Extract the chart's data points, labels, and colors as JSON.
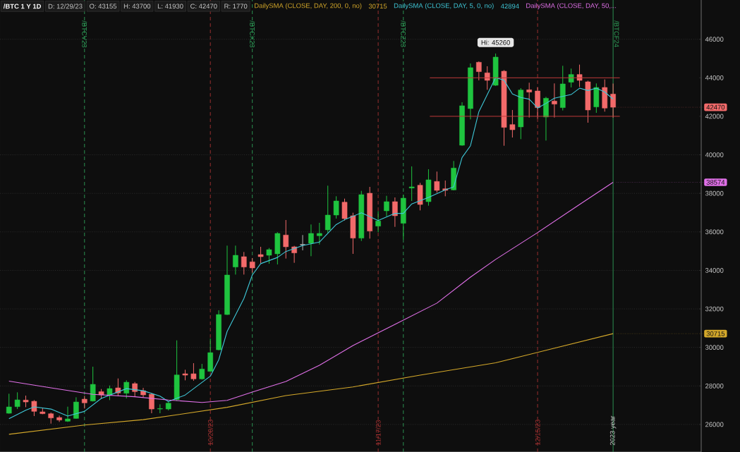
{
  "chart_data": {
    "type": "candlestick",
    "title": "/BTC 1 Y 1D",
    "categories": [
      null,
      null,
      null,
      null,
      null,
      null,
      null,
      null,
      null,
      "/BTCV23",
      null,
      null,
      null,
      null,
      null,
      null,
      null,
      null,
      null,
      null,
      null,
      null,
      null,
      null,
      "10/20/23",
      null,
      null,
      null,
      null,
      "/BTCX23",
      null,
      null,
      null,
      null,
      null,
      null,
      null,
      null,
      null,
      null,
      null,
      null,
      null,
      null,
      "11/17/23",
      null,
      null,
      "/BTCZ23",
      null,
      null,
      null,
      null,
      null,
      null,
      null,
      null,
      null,
      null,
      null,
      null,
      null,
      null,
      null,
      "12/15/23",
      null,
      null,
      null,
      null,
      null,
      null,
      null,
      null,
      "2023 year"
    ],
    "ohlc": [
      [
        26581,
        27595,
        26557,
        26911
      ],
      [
        26923,
        27668,
        26801,
        27277
      ],
      [
        27265,
        27497,
        26899,
        27167
      ],
      [
        27204,
        27265,
        26435,
        26679
      ],
      [
        26654,
        26838,
        26532,
        26557
      ],
      [
        26557,
        26618,
        26044,
        26337
      ],
      [
        26361,
        26459,
        26130,
        26227
      ],
      [
        26166,
        26923,
        26130,
        26288
      ],
      [
        26313,
        27411,
        26300,
        27167
      ],
      [
        27314,
        27485,
        26825,
        27119
      ],
      [
        27216,
        28999,
        27192,
        28083
      ],
      [
        27705,
        27839,
        27338,
        27534
      ],
      [
        27534,
        28022,
        27265,
        27863
      ],
      [
        27900,
        28388,
        27473,
        27631
      ],
      [
        27619,
        28291,
        27350,
        28193
      ],
      [
        28120,
        28205,
        27436,
        27705
      ],
      [
        27753,
        27900,
        27411,
        27534
      ],
      [
        27570,
        27631,
        26581,
        26801
      ],
      [
        26801,
        27045,
        26581,
        26825
      ],
      [
        26801,
        27167,
        26728,
        27106
      ],
      [
        27289,
        30366,
        27228,
        28571
      ],
      [
        28632,
        28840,
        28291,
        28559
      ],
      [
        28632,
        29182,
        28266,
        28364
      ],
      [
        28364,
        29145,
        28327,
        28877
      ],
      [
        28755,
        30462,
        28730,
        29729
      ],
      [
        29876,
        31927,
        29850,
        31707
      ],
      [
        31707,
        35285,
        31683,
        33759
      ],
      [
        34174,
        35285,
        33783,
        34784
      ],
      [
        34711,
        34955,
        33783,
        34174
      ],
      [
        34442,
        34638,
        33881,
        34125
      ],
      [
        34821,
        35224,
        34369,
        34711
      ],
      [
        34784,
        35163,
        34345,
        35077
      ],
      [
        34858,
        35981,
        34308,
        35920
      ],
      [
        35835,
        36616,
        34614,
        35224
      ],
      [
        35224,
        35273,
        34394,
        34907
      ],
      [
        35334,
        35835,
        35041,
        35334
      ],
      [
        35407,
        36384,
        34736,
        35920
      ],
      [
        35798,
        36469,
        35346,
        35920
      ],
      [
        36103,
        38399,
        35957,
        36872
      ],
      [
        36872,
        37849,
        36689,
        37605
      ],
      [
        37543,
        37726,
        36591,
        36688
      ],
      [
        36835,
        36994,
        34857,
        35675
      ],
      [
        35675,
        38129,
        35528,
        37934
      ],
      [
        38007,
        38337,
        35650,
        36041
      ],
      [
        36298,
        37079,
        35980,
        36566
      ],
      [
        37091,
        37873,
        36811,
        37567
      ],
      [
        37567,
        37787,
        36261,
        36835
      ],
      [
        36444,
        37934,
        35614,
        37751
      ],
      [
        38276,
        39399,
        37604,
        38337
      ],
      [
        38422,
        38544,
        37116,
        37421
      ],
      [
        37567,
        39252,
        37360,
        38703
      ],
      [
        38618,
        39130,
        38031,
        38154
      ],
      [
        38239,
        38666,
        37848,
        38154
      ],
      [
        38178,
        39680,
        38154,
        39313
      ],
      [
        40496,
        42731,
        40471,
        42548
      ],
      [
        42401,
        44746,
        41840,
        44526
      ],
      [
        44807,
        44850,
        43866,
        44318
      ],
      [
        44257,
        44599,
        43378,
        43866
      ],
      [
        43610,
        45260,
        43580,
        45075
      ],
      [
        44343,
        44400,
        40472,
        41424
      ],
      [
        41571,
        42328,
        40899,
        41302
      ],
      [
        41449,
        43464,
        40814,
        43366
      ],
      [
        43378,
        43744,
        41937,
        43256
      ],
      [
        43317,
        43500,
        41876,
        42450
      ],
      [
        41962,
        43012,
        40740,
        42938
      ],
      [
        42792,
        43708,
        41937,
        42633
      ],
      [
        42450,
        44623,
        42304,
        43683
      ],
      [
        43769,
        44477,
        43500,
        44172
      ],
      [
        44172,
        44684,
        43524,
        43866
      ],
      [
        43793,
        43850,
        41669,
        42328
      ],
      [
        42487,
        43708,
        42181,
        43500
      ],
      [
        43500,
        43915,
        42243,
        42426
      ],
      [
        43155,
        43700,
        41930,
        42470
      ]
    ],
    "series": [
      {
        "type": "line",
        "name": "DailySMA (CLOSE, DAY, 200, 0, no)",
        "color": "#d4a82a",
        "values": [
          25490,
          null,
          null,
          null,
          null,
          null,
          null,
          null,
          null,
          25970,
          null,
          null,
          null,
          null,
          null,
          null,
          26250,
          null,
          null,
          null,
          26500,
          null,
          null,
          null,
          null,
          null,
          26890,
          null,
          null,
          null,
          null,
          null,
          null,
          27500,
          null,
          null,
          null,
          null,
          null,
          null,
          null,
          27950,
          null,
          null,
          null,
          null,
          null,
          null,
          null,
          28560,
          null,
          null,
          null,
          null,
          null,
          null,
          null,
          null,
          29200,
          null,
          null,
          null,
          null,
          null,
          29850,
          null,
          null,
          null,
          null,
          null,
          null,
          null,
          30715
        ]
      },
      {
        "type": "line",
        "name": "DailySMA (CLOSE, DAY, 5, 0, no)",
        "color": "#3fc8d8",
        "values": [
          26300,
          null,
          26740,
          26910,
          null,
          26800,
          null,
          26440,
          null,
          26680,
          null,
          27350,
          null,
          null,
          27860,
          null,
          27750,
          null,
          27470,
          27190,
          null,
          27530,
          null,
          null,
          28510,
          29360,
          30830,
          null,
          32540,
          33760,
          34350,
          null,
          34670,
          34980,
          null,
          35290,
          null,
          35470,
          null,
          36380,
          36630,
          null,
          36990,
          null,
          36590,
          null,
          36960,
          36960,
          37450,
          null,
          37790,
          null,
          38180,
          38340,
          39860,
          40470,
          42240,
          null,
          44010,
          43870,
          43160,
          42980,
          42890,
          42430,
          42670,
          42940,
          null,
          43130,
          43460,
          43340,
          43460,
          43260,
          42894
        ]
      },
      {
        "type": "line",
        "name": "DailySMA (CLOSE, DAY, 50,...",
        "color": "#e070e8",
        "values": [
          28250,
          null,
          null,
          null,
          null,
          27900,
          null,
          null,
          null,
          null,
          27560,
          null,
          null,
          null,
          null,
          27440,
          null,
          null,
          null,
          27270,
          null,
          null,
          null,
          27140,
          null,
          null,
          27250,
          null,
          null,
          27680,
          null,
          null,
          null,
          28230,
          null,
          null,
          null,
          29070,
          null,
          null,
          null,
          30100,
          null,
          null,
          null,
          null,
          31200,
          null,
          null,
          null,
          null,
          32300,
          null,
          null,
          null,
          33650,
          null,
          null,
          34570,
          null,
          null,
          null,
          null,
          35960,
          null,
          null,
          null,
          null,
          37420,
          null,
          null,
          null,
          38574
        ]
      }
    ],
    "ylim": [
      24570,
      48040
    ],
    "yticks": [
      26000,
      28000,
      30000,
      32000,
      34000,
      36000,
      38000,
      40000,
      42000,
      44000,
      46000
    ],
    "grid": "y",
    "legend": "top",
    "ref_lines": [
      {
        "axis": "x",
        "value": "10/20/23",
        "color": "#a83232",
        "line_style": "dashed"
      },
      {
        "axis": "x",
        "value": "11/17/23",
        "color": "#a83232",
        "line_style": "dashed"
      },
      {
        "axis": "x",
        "value": "12/15/23",
        "color": "#a83232",
        "line_style": "dashed"
      },
      {
        "axis": "x",
        "value": "/BTCV23",
        "color": "#2e9e58",
        "line_style": "dashed"
      },
      {
        "axis": "x",
        "value": "/BTCX23",
        "color": "#2e9e58",
        "line_style": "dashed"
      },
      {
        "axis": "x",
        "value": "/BTCZ23",
        "color": "#2e9e58",
        "line_style": "dashed"
      },
      {
        "axis": "x",
        "value": "2023 year",
        "label": "/BTCF24",
        "color": "#2e9e58",
        "line_style": "solid"
      },
      {
        "axis": "y",
        "value": 44000,
        "color": "#c03a3a",
        "line_style": "solid"
      },
      {
        "axis": "y",
        "value": 42000,
        "color": "#c03a3a",
        "line_style": "solid"
      }
    ],
    "annotations": [
      "D: 12/29/23",
      "O: 43155",
      "H: 43700",
      "L: 41930",
      "C: 42470",
      "R: 1770",
      {
        "text": "42470",
        "x": "2023 year",
        "y": 42470
      },
      {
        "text": "38574",
        "x": "2023 year",
        "y": 38574
      },
      {
        "text": "30715",
        "x": "2023 year",
        "y": 30715
      },
      "Hi: 45260",
      "30715",
      "42894"
    ]
  }
}
